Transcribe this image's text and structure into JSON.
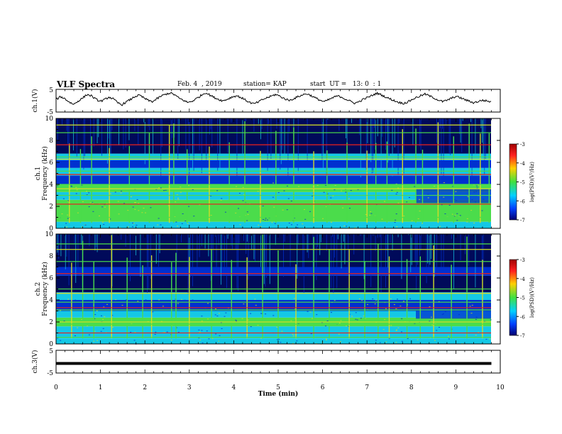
{
  "header": {
    "title": "VLF Spectra",
    "date": "Feb. 4  , 2019",
    "station": "station= KAP",
    "start": "start  UT =   13: 0  : 1"
  },
  "chart_data": [
    {
      "type": "line",
      "name": "ch1-waveform",
      "ylabel": "ch.1(V)",
      "ylim": [
        -5,
        5
      ],
      "yticks": [
        "5",
        "-5"
      ],
      "xlim": [
        0,
        10
      ],
      "y_description": "noisy waveform oscillating roughly between -2 and 4 V",
      "trace_samples": [
        0.5,
        1.8,
        0.9,
        -0.6,
        -1.6,
        -0.2,
        1.1,
        2.7,
        2.2,
        0.7,
        -0.3,
        0.4,
        1.6,
        0.8,
        -0.9,
        -1.8,
        -0.5,
        0.6,
        1.9,
        2.4,
        1.2,
        0.1,
        -0.4,
        0.9,
        2.1,
        2.9,
        3.4,
        2.6,
        1.1,
        0.2,
        -0.8,
        -0.2,
        1.0,
        2.3,
        3.6,
        2.5,
        1.4,
        0.6,
        -0.1,
        0.7,
        1.6,
        2.2,
        1.5,
        0.4,
        -0.7,
        -1.4,
        -0.6,
        0.5,
        1.3,
        2.0,
        2.8,
        1.9,
        0.9,
        0.1,
        0.8,
        1.7,
        2.5,
        3.1,
        2.3,
        1.2,
        0.3,
        -0.5,
        0.4,
        1.3,
        2.1,
        1.6,
        0.6,
        -0.3,
        -1.1,
        -0.4,
        0.7,
        1.5,
        2.4,
        3.3,
        2.6,
        1.6,
        0.8,
        0.0,
        -0.7,
        -1.2,
        -0.6,
        0.5,
        1.4,
        2.2,
        2.9,
        2.1,
        1.2,
        0.3,
        -0.4,
        0.2,
        1.1,
        1.9,
        1.3,
        0.5,
        -0.2,
        -0.9,
        -0.4,
        0.2,
        -0.1,
        -0.5
      ]
    },
    {
      "type": "heatmap",
      "name": "ch1-spectrogram",
      "ylabel": "ch.1\nFrequency (kHz)",
      "xlim": [
        0,
        10
      ],
      "ylim": [
        0,
        10
      ],
      "yticks": [
        "0",
        "2",
        "4",
        "6",
        "8",
        "10"
      ],
      "colorbar": {
        "label": "log(PSD)(V²/Hz)",
        "range": [
          -7,
          -3
        ],
        "ticks": [
          "-3",
          "-4",
          "-5",
          "-6",
          "-7"
        ]
      },
      "horizontal_lines_khz": [
        1.0,
        2.2,
        3.0,
        3.6,
        4.0,
        4.9,
        5.2,
        6.3,
        6.5,
        7.6,
        8.7,
        9.4
      ],
      "vertical_streaks_min": [
        0.3,
        0.55,
        0.8,
        1.2,
        1.65,
        2.1,
        2.55,
        2.65,
        2.95,
        3.45,
        3.9,
        4.25,
        4.6,
        4.95,
        5.35,
        5.8,
        6.1,
        6.55,
        7.0,
        7.2,
        7.45,
        7.8,
        8.1,
        8.25,
        8.6,
        8.95,
        9.3,
        9.55,
        9.75
      ]
    },
    {
      "type": "heatmap",
      "name": "ch2-spectrogram",
      "ylabel": "ch.2\nFrequency (kHz)",
      "xlim": [
        0,
        10
      ],
      "ylim": [
        0,
        10
      ],
      "yticks": [
        "0",
        "2",
        "4",
        "6",
        "8",
        "10"
      ],
      "colorbar": {
        "label": "log(PSD)(V²/Hz)",
        "range": [
          -7,
          -3
        ],
        "ticks": [
          "-3",
          "-4",
          "-5",
          "-6",
          "-7"
        ]
      },
      "horizontal_lines_khz": [
        0.6,
        1.0,
        1.8,
        2.0,
        3.1,
        3.3,
        3.8,
        4.6,
        5.0,
        6.4,
        7.5,
        8.6,
        9.1
      ],
      "vertical_streaks_min": [
        0.35,
        0.6,
        0.85,
        1.25,
        1.6,
        1.95,
        2.15,
        2.6,
        2.7,
        3.0,
        3.5,
        3.95,
        4.3,
        4.65,
        5.0,
        5.4,
        5.8,
        6.15,
        6.6,
        6.95,
        7.25,
        7.5,
        7.9,
        8.2,
        8.5,
        8.9,
        9.25,
        9.6
      ]
    },
    {
      "type": "line",
      "name": "ch3-waveform",
      "ylabel": "ch.3(V)",
      "ylim": [
        -5,
        5
      ],
      "yticks": [
        "5",
        "-5"
      ],
      "xlim": [
        0,
        10
      ],
      "x": [
        0,
        9.8
      ],
      "y": [
        -0.8,
        -0.8
      ]
    }
  ],
  "xaxis": {
    "label": "Time  (min)",
    "ticks": [
      "0",
      "1",
      "2",
      "3",
      "4",
      "5",
      "6",
      "7",
      "8",
      "9",
      "10"
    ]
  },
  "colors": {
    "dark_blue": "#000a5a",
    "blue": "#0030d0",
    "cyan": "#14c8e6",
    "green": "#4bdc4b",
    "yellow": "#d2dc28",
    "red": "#e62020",
    "trace": "#000000"
  }
}
